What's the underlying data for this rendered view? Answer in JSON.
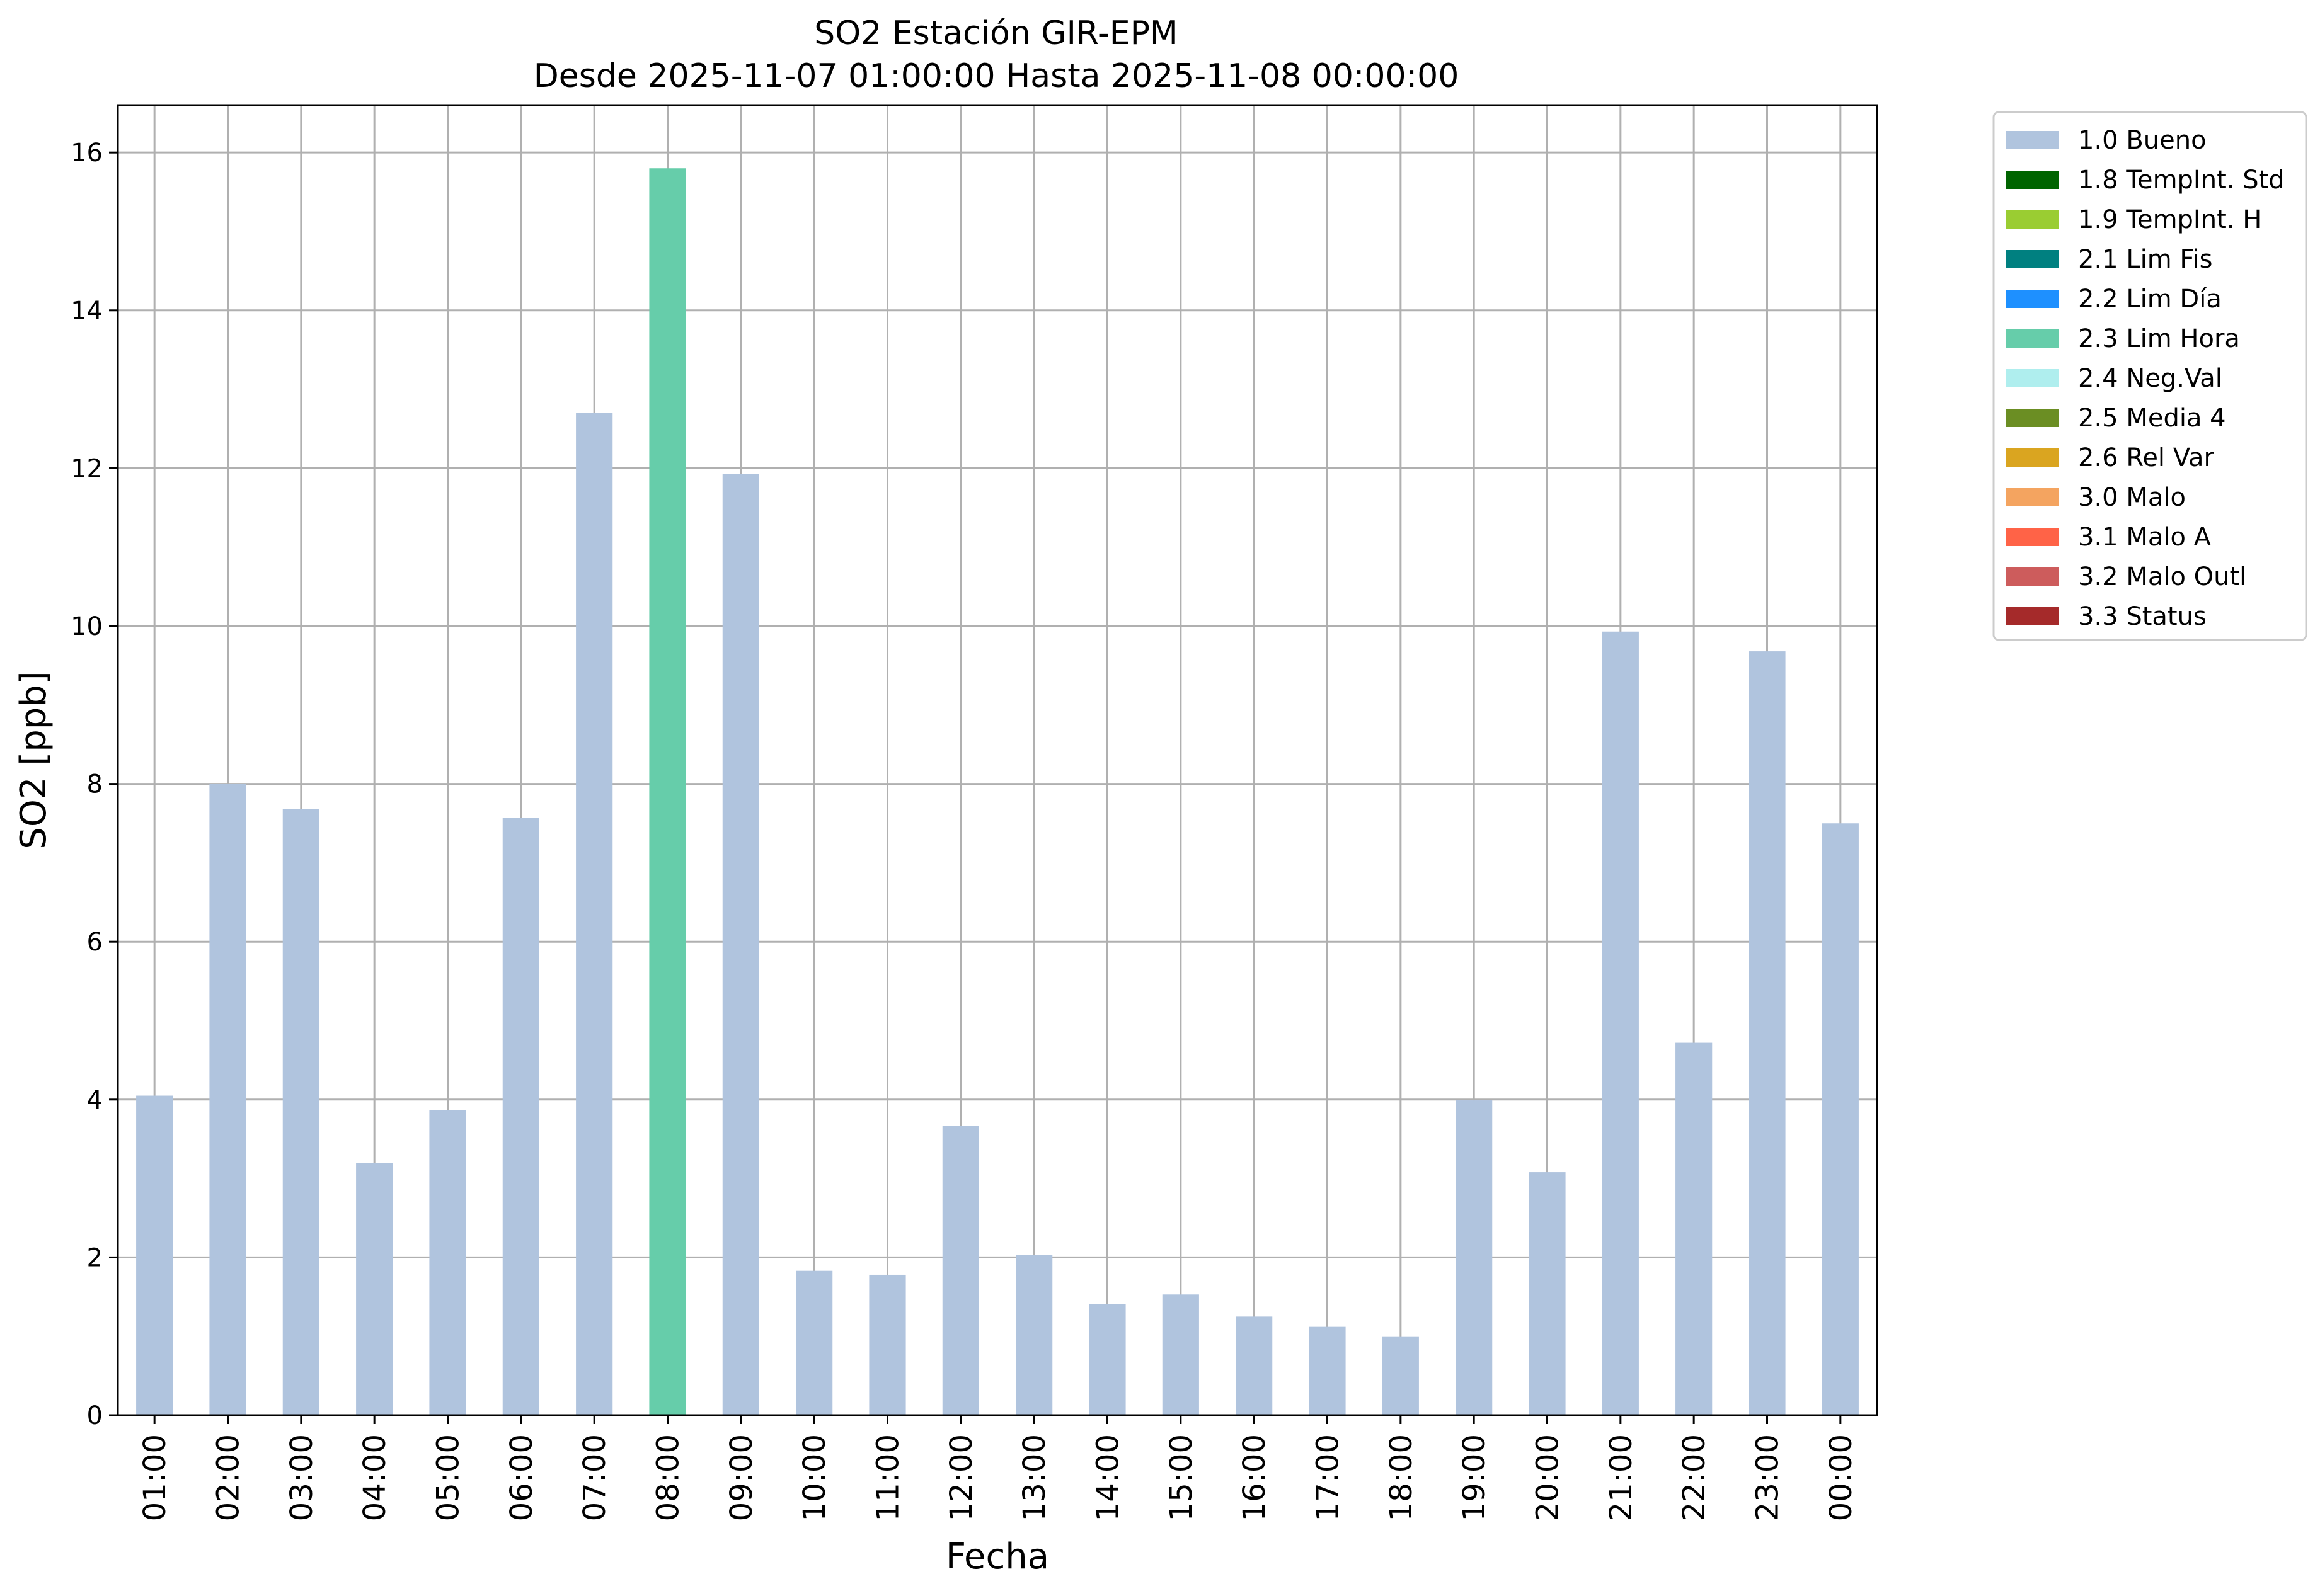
{
  "chart_data": {
    "type": "bar",
    "title": "SO2 Estación GIR-EPM",
    "subtitle": "Desde 2025-11-07 01:00:00 Hasta 2025-11-08 00:00:00",
    "xlabel": "Fecha",
    "ylabel": "SO2 [ppb]",
    "ylim": [
      0,
      16.6
    ],
    "yticks": [
      "0",
      "2",
      "4",
      "6",
      "8",
      "10",
      "12",
      "14",
      "16"
    ],
    "grid": true,
    "legend_position": "outside-right-top",
    "categories": [
      "01:00",
      "02:00",
      "03:00",
      "04:00",
      "05:00",
      "06:00",
      "07:00",
      "08:00",
      "09:00",
      "10:00",
      "11:00",
      "12:00",
      "13:00",
      "14:00",
      "15:00",
      "16:00",
      "17:00",
      "18:00",
      "19:00",
      "20:00",
      "21:00",
      "22:00",
      "23:00",
      "00:00"
    ],
    "values": [
      4.05,
      8.0,
      7.68,
      3.2,
      3.87,
      7.57,
      12.7,
      15.8,
      11.93,
      1.83,
      1.78,
      3.67,
      2.03,
      1.41,
      1.53,
      1.25,
      1.12,
      1.0,
      3.99,
      3.08,
      9.93,
      4.72,
      9.68,
      7.5
    ],
    "bar_flags": [
      "1.0 Bueno",
      "1.0 Bueno",
      "1.0 Bueno",
      "1.0 Bueno",
      "1.0 Bueno",
      "1.0 Bueno",
      "1.0 Bueno",
      "2.3 Lim Hora",
      "1.0 Bueno",
      "1.0 Bueno",
      "1.0 Bueno",
      "1.0 Bueno",
      "1.0 Bueno",
      "1.0 Bueno",
      "1.0 Bueno",
      "1.0 Bueno",
      "1.0 Bueno",
      "1.0 Bueno",
      "1.0 Bueno",
      "1.0 Bueno",
      "1.0 Bueno",
      "1.0 Bueno",
      "1.0 Bueno",
      "1.0 Bueno"
    ],
    "legend": [
      {
        "label": "1.0 Bueno",
        "color": "#b0c4de"
      },
      {
        "label": "1.8 TempInt. Std",
        "color": "#006400"
      },
      {
        "label": "1.9 TempInt. H",
        "color": "#9acd32"
      },
      {
        "label": "2.1 Lim Fis",
        "color": "#008080"
      },
      {
        "label": "2.2 Lim Día",
        "color": "#1e90ff"
      },
      {
        "label": "2.3 Lim Hora",
        "color": "#66cdaa"
      },
      {
        "label": "2.4 Neg.Val",
        "color": "#afeeee"
      },
      {
        "label": "2.5 Media 4",
        "color": "#6b8e23"
      },
      {
        "label": "2.6 Rel Var",
        "color": "#daa520"
      },
      {
        "label": "3.0 Malo",
        "color": "#f4a460"
      },
      {
        "label": "3.1 Malo A",
        "color": "#ff6347"
      },
      {
        "label": "3.2 Malo Outl",
        "color": "#cd5c5c"
      },
      {
        "label": "3.3 Status",
        "color": "#a52a2a"
      }
    ]
  }
}
